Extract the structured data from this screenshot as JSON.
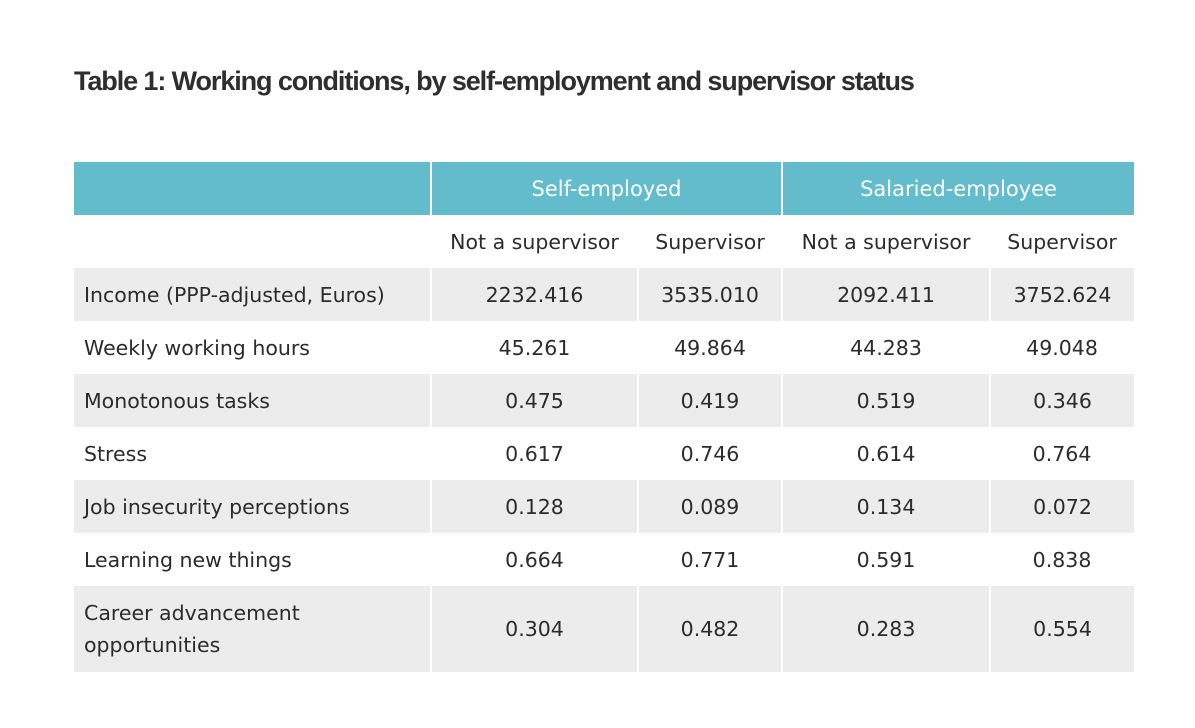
{
  "title": "Table 1: Working conditions, by self-employment and supervisor status",
  "groups": [
    "Self-employed",
    "Salaried-employee"
  ],
  "subheaders": [
    "Not a supervisor",
    "Supervisor",
    "Not a supervisor",
    "Supervisor"
  ],
  "rows": [
    {
      "label": "Income (PPP-adjusted, Euros)",
      "values": [
        "2232.416",
        "3535.010",
        "2092.411",
        "3752.624"
      ]
    },
    {
      "label": "Weekly working hours",
      "values": [
        "45.261",
        "49.864",
        "44.283",
        "49.048"
      ]
    },
    {
      "label": "Monotonous tasks",
      "values": [
        "0.475",
        "0.419",
        "0.519",
        "0.346"
      ]
    },
    {
      "label": "Stress",
      "values": [
        "0.617",
        "0.746",
        "0.614",
        "0.764"
      ]
    },
    {
      "label": "Job insecurity perceptions",
      "values": [
        "0.128",
        "0.089",
        "0.134",
        "0.072"
      ]
    },
    {
      "label": "Learning new things",
      "values": [
        "0.664",
        "0.771",
        "0.591",
        "0.838"
      ]
    },
    {
      "label": "Career advancement opportunities",
      "values": [
        "0.304",
        "0.482",
        "0.283",
        "0.554"
      ]
    }
  ],
  "colors": {
    "header_bg": "#62bccc",
    "stripe_bg": "#ececec",
    "text": "#2b2b2b"
  }
}
